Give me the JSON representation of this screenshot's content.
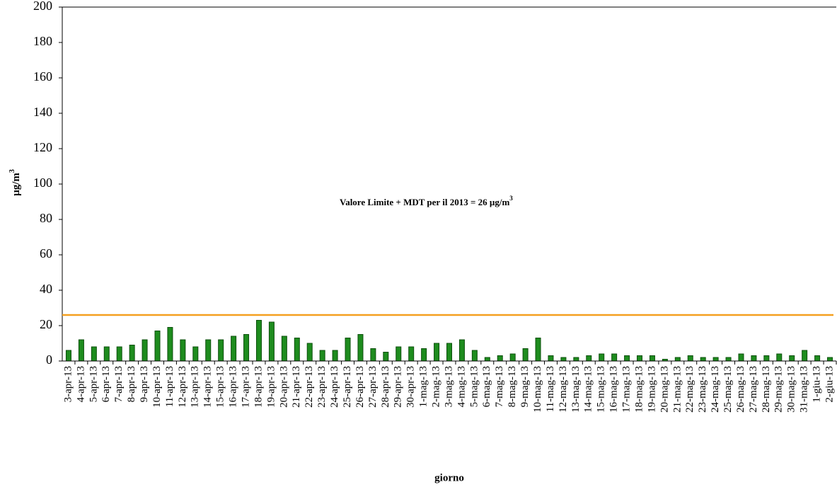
{
  "chart_data": {
    "type": "bar",
    "categories": [
      "3-apr-13",
      "4-apr-13",
      "5-apr-13",
      "6-apr-13",
      "7-apr-13",
      "8-apr-13",
      "9-apr-13",
      "10-apr-13",
      "11-apr-13",
      "12-apr-13",
      "13-apr-13",
      "14-apr-13",
      "15-apr-13",
      "16-apr-13",
      "17-apr-13",
      "18-apr-13",
      "19-apr-13",
      "20-apr-13",
      "21-apr-13",
      "22-apr-13",
      "23-apr-13",
      "24-apr-13",
      "25-apr-13",
      "26-apr-13",
      "27-apr-13",
      "28-apr-13",
      "29-apr-13",
      "30-apr-13",
      "1-mag-13",
      "2-mag-13",
      "3-mag-13",
      "4-mag-13",
      "5-mag-13",
      "6-mag-13",
      "7-mag-13",
      "8-mag-13",
      "9-mag-13",
      "10-mag-13",
      "11-mag-13",
      "12-mag-13",
      "13-mag-13",
      "14-mag-13",
      "15-mag-13",
      "16-mag-13",
      "17-mag-13",
      "18-mag-13",
      "19-mag-13",
      "20-mag-13",
      "21-mag-13",
      "22-mag-13",
      "23-mag-13",
      "24-mag-13",
      "25-mag-13",
      "26-mag-13",
      "27-mag-13",
      "28-mag-13",
      "29-mag-13",
      "30-mag-13",
      "31-mag-13",
      "1-giu-13",
      "2-giu-13"
    ],
    "values": [
      6,
      12,
      8,
      8,
      8,
      9,
      12,
      17,
      19,
      12,
      8,
      12,
      12,
      14,
      15,
      23,
      22,
      14,
      13,
      10,
      6,
      6,
      13,
      15,
      7,
      5,
      8,
      8,
      7,
      10,
      10,
      12,
      6,
      2,
      3,
      4,
      7,
      13,
      3,
      2,
      2,
      3,
      4,
      4,
      3,
      3,
      3,
      1,
      2,
      3,
      2,
      2,
      2,
      4,
      3,
      3,
      4,
      3,
      6,
      3,
      2
    ],
    "color": "#1e8c1e",
    "ylim": [
      0,
      200
    ],
    "yticks": [
      0,
      20,
      40,
      60,
      80,
      100,
      120,
      140,
      160,
      180,
      200
    ],
    "ylabel": "µg/m",
    "ylabel_sup": "3",
    "xlabel": "giorno",
    "limit_line": 26,
    "limit_color": "#f5a020",
    "annotation": "Valore Limite + MDT  per il 2013 = 26 µg/m",
    "annotation_sup": "3"
  }
}
